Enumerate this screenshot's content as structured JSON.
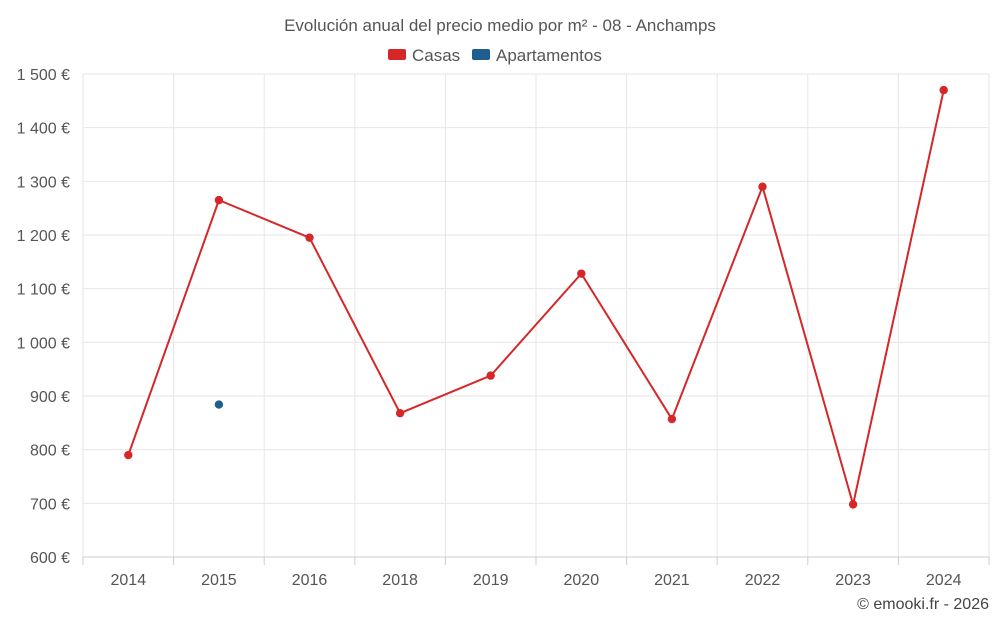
{
  "chart_data": {
    "type": "line",
    "title": "Evolución anual del precio medio por m² - 08 - Anchamps",
    "categories": [
      "2014",
      "2015",
      "2016",
      "2018",
      "2019",
      "2020",
      "2021",
      "2022",
      "2023",
      "2024"
    ],
    "series": [
      {
        "name": "Casas",
        "color": "#d62728",
        "values": [
          790,
          1265,
          1195,
          868,
          938,
          1128,
          857,
          1290,
          698,
          1470
        ]
      },
      {
        "name": "Apartamentos",
        "color": "#1f5f8f",
        "values": [
          null,
          884,
          null,
          null,
          null,
          null,
          null,
          null,
          null,
          null
        ]
      }
    ],
    "ylim": [
      600,
      1500
    ],
    "yticks": [
      600,
      700,
      800,
      900,
      1000,
      1100,
      1200,
      1300,
      1400,
      1500
    ],
    "ytick_labels": [
      "600 €",
      "700 €",
      "800 €",
      "900 €",
      "1 000 €",
      "1 100 €",
      "1 200 €",
      "1 300 €",
      "1 400 €",
      "1 500 €"
    ],
    "xlabel": "",
    "ylabel": "",
    "grid": true,
    "legend_position": "top-center"
  },
  "credit": "© emooki.fr - 2026"
}
